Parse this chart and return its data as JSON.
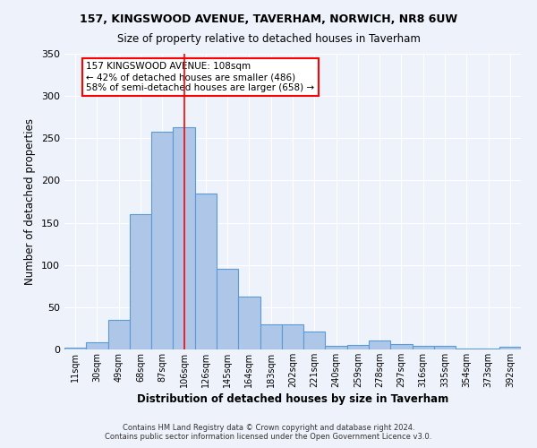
{
  "title1": "157, KINGSWOOD AVENUE, TAVERHAM, NORWICH, NR8 6UW",
  "title2": "Size of property relative to detached houses in Taverham",
  "xlabel": "Distribution of detached houses by size in Taverham",
  "ylabel": "Number of detached properties",
  "categories": [
    "11sqm",
    "30sqm",
    "49sqm",
    "68sqm",
    "87sqm",
    "106sqm",
    "126sqm",
    "145sqm",
    "164sqm",
    "183sqm",
    "202sqm",
    "221sqm",
    "240sqm",
    "259sqm",
    "278sqm",
    "297sqm",
    "316sqm",
    "335sqm",
    "354sqm",
    "373sqm",
    "392sqm"
  ],
  "values": [
    2,
    9,
    35,
    160,
    258,
    263,
    185,
    95,
    63,
    30,
    30,
    21,
    4,
    5,
    11,
    6,
    4,
    4,
    1,
    1,
    3
  ],
  "bar_color": "#aec6e8",
  "bar_edge_color": "#5b9bd5",
  "background_color": "#eef3fb",
  "grid_color": "#ffffff",
  "marker_bin_index": 5,
  "annotation_line1": "157 KINGSWOOD AVENUE: 108sqm",
  "annotation_line2": "← 42% of detached houses are smaller (486)",
  "annotation_line3": "58% of semi-detached houses are larger (658) →",
  "footer1": "Contains HM Land Registry data © Crown copyright and database right 2024.",
  "footer2": "Contains public sector information licensed under the Open Government Licence v3.0.",
  "ylim": [
    0,
    350
  ],
  "yticks": [
    0,
    50,
    100,
    150,
    200,
    250,
    300,
    350
  ]
}
